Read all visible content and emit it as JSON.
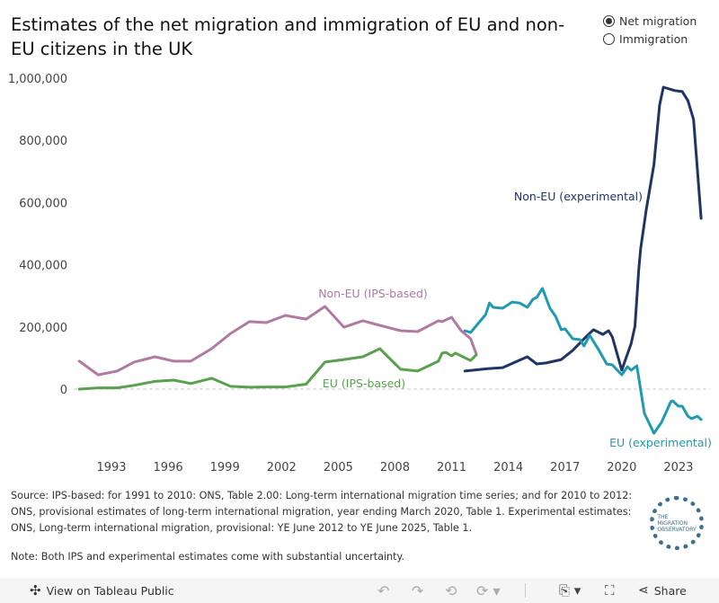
{
  "title": "Estimates of the net migration and immigration of EU and non-EU citizens in the UK",
  "legend": {
    "options": [
      {
        "label": "Net migration",
        "selected": true
      },
      {
        "label": "Immigration",
        "selected": false
      }
    ]
  },
  "chart_data": {
    "type": "line",
    "title": "Estimates of the net migration and immigration of EU and non-EU citizens in the UK",
    "xlabel": "",
    "ylabel": "",
    "x_ticks": [
      "1993",
      "1996",
      "1999",
      "2002",
      "2005",
      "2008",
      "2011",
      "2014",
      "2017",
      "2020",
      "2023"
    ],
    "y_ticks": [
      "1,000,000",
      "800,000",
      "600,000",
      "400,000",
      "200,000",
      "0"
    ],
    "ylim": [
      -150000,
      1000000
    ],
    "grid": "zero line only (dashed)",
    "series": [
      {
        "name": "Non-EU (IPS-based)",
        "color": "#b07aa1",
        "x": [
          1991.3,
          1992.3,
          1993.3,
          1994.2,
          1995.3,
          1996.3,
          1997.2,
          1998.3,
          1999.3,
          2000.3,
          2001.2,
          2002.2,
          2003.3,
          2004.3,
          2005.3,
          2006.3,
          2007.2,
          2008.3,
          2009.2,
          2010.3,
          2010.5,
          2011.0,
          2011.5,
          2012.0,
          2012.3
        ],
        "y": [
          90000,
          46000,
          58000,
          87000,
          104000,
          90000,
          90000,
          130000,
          179000,
          217000,
          214000,
          237000,
          225000,
          266000,
          199000,
          220000,
          205000,
          188000,
          185000,
          220000,
          217000,
          231000,
          188000,
          162000,
          113000
        ]
      },
      {
        "name": "EU (IPS-based)",
        "color": "#59a14f",
        "x": [
          1991.3,
          1992.3,
          1993.3,
          1994.2,
          1995.3,
          1996.3,
          1997.2,
          1998.3,
          1999.3,
          2000.3,
          2001.2,
          2002.2,
          2003.3,
          2004.3,
          2005.3,
          2006.3,
          2007.2,
          2008.3,
          2009.2,
          2010.3,
          2010.5,
          2010.7,
          2011.0,
          2011.2,
          2012.0,
          2012.3
        ],
        "y": [
          0,
          4000,
          4000,
          12000,
          25000,
          29000,
          18000,
          35000,
          9000,
          6000,
          7000,
          7000,
          16000,
          87000,
          95000,
          104000,
          130000,
          64000,
          58000,
          90000,
          116000,
          118000,
          107000,
          116000,
          92000,
          110000
        ]
      },
      {
        "name": "Non-EU (experimental)",
        "color": "#1f3564",
        "x": [
          2011.7,
          2012.9,
          2013.7,
          2015.0,
          2015.5,
          2016.0,
          2016.8,
          2017.4,
          2018.1,
          2018.5,
          2019.0,
          2019.3,
          2019.5,
          2020.0,
          2020.5,
          2020.7,
          2020.9,
          2021.0,
          2021.3,
          2021.7,
          2022.0,
          2022.2,
          2022.8,
          2023.2,
          2023.5,
          2023.8,
          2024.2
        ],
        "y": [
          58000,
          66000,
          69000,
          104000,
          81000,
          84000,
          95000,
          124000,
          168000,
          191000,
          176000,
          188000,
          168000,
          61000,
          147000,
          202000,
          384000,
          451000,
          578000,
          722000,
          913000,
          971000,
          960000,
          957000,
          928000,
          867000,
          549000
        ]
      },
      {
        "name": "EU (experimental)",
        "color": "#1f9bb0",
        "x": [
          2011.7,
          2012.0,
          2012.4,
          2012.8,
          2013.0,
          2013.2,
          2013.7,
          2014.2,
          2014.6,
          2015.0,
          2015.3,
          2015.5,
          2015.8,
          2016.2,
          2016.5,
          2016.8,
          2017.0,
          2017.4,
          2017.8,
          2018.0,
          2018.3,
          2018.8,
          2019.2,
          2019.5,
          2020.0,
          2020.3,
          2020.5,
          2020.8,
          2021.2,
          2021.7,
          2022.1,
          2022.6,
          2022.7,
          2023.0,
          2023.2,
          2023.5,
          2023.7,
          2024.0,
          2024.2
        ],
        "y": [
          188000,
          182000,
          211000,
          240000,
          277000,
          263000,
          260000,
          280000,
          277000,
          263000,
          289000,
          295000,
          324000,
          260000,
          234000,
          191000,
          194000,
          162000,
          159000,
          139000,
          173000,
          124000,
          81000,
          78000,
          46000,
          72000,
          61000,
          75000,
          -78000,
          -142000,
          -107000,
          -40000,
          -38000,
          -55000,
          -55000,
          -87000,
          -95000,
          -87000,
          -98000
        ]
      }
    ]
  },
  "source": "Source: IPS-based: for 1991 to 2010: ONS, Table 2.00: Long-term international migration time series; and for 2010 to 2012: ONS, provisional estimates of long-term international migration, year ending March 2020, Table 1. Experimental estimates: ONS, Long-term international migration, provisional: YE June 2012 to YE June 2025, Table 1.",
  "note": "Note: Both IPS and experimental estimates come with substantial uncertainty.",
  "logo_text": "THE MIGRATION OBSERVATORY",
  "toolbar": {
    "view_label": "View on Tableau Public",
    "share_label": "Share"
  }
}
